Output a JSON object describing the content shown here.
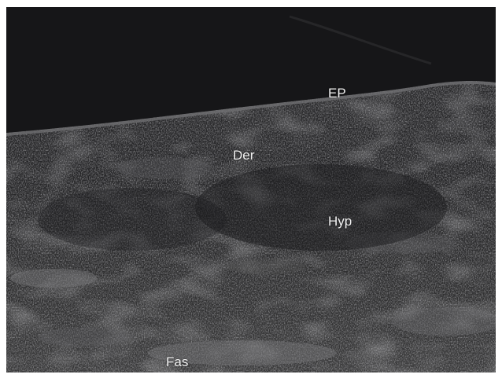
{
  "image": {
    "labels": {
      "ep": "EP",
      "der": "Der",
      "hyp": "Hyp",
      "fas": "Fas"
    },
    "colors": {
      "background": "#161618",
      "tissue_dark": "#2a2a2c",
      "tissue_mid": "#4a4a4a",
      "tissue_bright": "#8c8c8c",
      "label_text": "#f2f2f2"
    }
  }
}
